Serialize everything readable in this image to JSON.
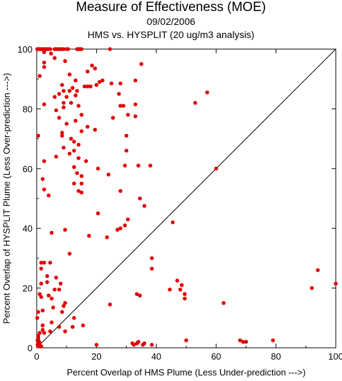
{
  "chart_data": {
    "type": "scatter",
    "title": "Measure of Effectiveness (MOE)",
    "subtitle": "09/02/2006",
    "subtitle2": "HMS vs. HYSPLIT  (20 ug/m3 analysis)",
    "xlabel": "Percent Overlap of HMS Plume (Less Under-prediction --->)",
    "ylabel": "Percent Overlap of HYSPLIT Plume (Less Over-prediction --->)",
    "xlim": [
      0,
      100
    ],
    "ylim": [
      0,
      100
    ],
    "x_ticks": [
      "0",
      "20",
      "40",
      "60",
      "80",
      "100"
    ],
    "y_ticks": [
      "0",
      "20",
      "40",
      "60",
      "80",
      "100"
    ],
    "reference_line": "1:1 diagonal",
    "point_color": "#e00000",
    "line_color": "#000000",
    "points": [
      [
        0.2,
        100
      ],
      [
        0.5,
        100
      ],
      [
        0.8,
        100
      ],
      [
        1.2,
        100
      ],
      [
        1.5,
        100
      ],
      [
        1.8,
        100
      ],
      [
        2.2,
        100
      ],
      [
        2.6,
        100
      ],
      [
        3.0,
        100
      ],
      [
        3.5,
        100
      ],
      [
        4.0,
        100
      ],
      [
        4.5,
        100
      ],
      [
        6,
        100
      ],
      [
        6.5,
        100
      ],
      [
        7,
        100
      ],
      [
        7.5,
        100
      ],
      [
        8,
        100
      ],
      [
        8.5,
        100
      ],
      [
        9,
        100
      ],
      [
        10,
        100
      ],
      [
        10.5,
        100
      ],
      [
        13.5,
        100
      ],
      [
        14,
        100
      ],
      [
        14.5,
        100
      ],
      [
        15,
        100
      ],
      [
        24.5,
        100
      ],
      [
        2.5,
        99
      ],
      [
        4.8,
        98.5
      ],
      [
        6,
        97
      ],
      [
        9.5,
        96
      ],
      [
        2.5,
        95.5
      ],
      [
        2.5,
        94
      ],
      [
        18.5,
        94.5
      ],
      [
        19.5,
        93.5
      ],
      [
        35,
        95
      ],
      [
        17,
        92.5
      ],
      [
        11,
        91.5
      ],
      [
        1,
        91
      ],
      [
        13,
        89.5
      ],
      [
        21,
        89
      ],
      [
        22,
        89.5
      ],
      [
        25,
        88.5
      ],
      [
        28,
        88.5
      ],
      [
        20,
        88
      ],
      [
        18,
        87.5
      ],
      [
        17,
        87.5
      ],
      [
        16,
        87.5
      ],
      [
        8.5,
        88
      ],
      [
        9,
        86
      ],
      [
        11,
        86
      ],
      [
        12,
        87
      ],
      [
        13.5,
        86
      ],
      [
        7.5,
        85
      ],
      [
        13,
        84.5
      ],
      [
        33,
        89.5
      ],
      [
        57,
        85.5
      ],
      [
        27.5,
        85
      ],
      [
        10,
        84
      ],
      [
        6,
        84
      ],
      [
        9,
        82
      ],
      [
        11.5,
        82
      ],
      [
        14,
        81
      ],
      [
        2.5,
        81.5
      ],
      [
        28,
        81
      ],
      [
        29,
        81
      ],
      [
        33,
        81.5
      ],
      [
        53,
        82
      ],
      [
        9,
        80.5
      ],
      [
        6.5,
        79.5
      ],
      [
        15,
        78
      ],
      [
        30.5,
        78
      ],
      [
        33,
        77.5
      ],
      [
        7.5,
        77
      ],
      [
        25.5,
        77
      ],
      [
        13,
        76
      ],
      [
        10,
        75
      ],
      [
        17,
        74
      ],
      [
        19.5,
        73
      ],
      [
        15,
        72.5
      ],
      [
        8.5,
        72
      ],
      [
        8.5,
        71
      ],
      [
        0.5,
        71
      ],
      [
        30,
        71
      ],
      [
        11.5,
        70
      ],
      [
        12.5,
        69
      ],
      [
        14,
        68
      ],
      [
        9,
        67
      ],
      [
        12.5,
        66
      ],
      [
        30,
        66
      ],
      [
        11,
        65
      ],
      [
        6.5,
        64
      ],
      [
        14,
        63.5
      ],
      [
        2.5,
        62.5
      ],
      [
        16.5,
        62.5
      ],
      [
        29.5,
        61
      ],
      [
        34,
        61
      ],
      [
        38,
        61
      ],
      [
        12.5,
        60.5
      ],
      [
        20.5,
        60
      ],
      [
        60,
        60
      ],
      [
        13.5,
        58.5
      ],
      [
        24,
        58
      ],
      [
        15,
        57.5
      ],
      [
        2,
        56.5
      ],
      [
        12.5,
        55
      ],
      [
        15,
        55
      ],
      [
        2.5,
        53
      ],
      [
        14,
        52.5
      ],
      [
        15,
        52
      ],
      [
        28,
        52.5
      ],
      [
        4,
        51
      ],
      [
        34.5,
        50
      ],
      [
        36,
        47.5
      ],
      [
        20.5,
        45
      ],
      [
        30.5,
        43
      ],
      [
        45.5,
        42
      ],
      [
        29.5,
        41
      ],
      [
        28,
        40
      ],
      [
        27,
        39.5
      ],
      [
        9.5,
        39.5
      ],
      [
        5,
        38.5
      ],
      [
        17.5,
        37.5
      ],
      [
        23.5,
        37
      ],
      [
        11,
        31.5
      ],
      [
        38.5,
        30
      ],
      [
        1.5,
        28.5
      ],
      [
        2.5,
        28.5
      ],
      [
        4.5,
        28.5
      ],
      [
        1.5,
        26.5
      ],
      [
        38.5,
        26.5
      ],
      [
        94,
        26
      ],
      [
        3.5,
        24
      ],
      [
        6.5,
        23.5
      ],
      [
        3.5,
        22
      ],
      [
        47,
        22.5
      ],
      [
        8,
        21.5
      ],
      [
        1.5,
        21.5
      ],
      [
        48.5,
        21
      ],
      [
        100,
        21.5
      ],
      [
        92,
        20
      ],
      [
        6,
        19.5
      ],
      [
        7.5,
        19.5
      ],
      [
        44.5,
        19.5
      ],
      [
        48,
        19.5
      ],
      [
        33.5,
        18
      ],
      [
        1,
        18
      ],
      [
        34.5,
        17.5
      ],
      [
        49.5,
        18
      ],
      [
        4,
        17.5
      ],
      [
        5,
        16.5
      ],
      [
        49.5,
        16.5
      ],
      [
        1.5,
        17
      ],
      [
        24.5,
        14.5
      ],
      [
        9.5,
        15
      ],
      [
        9,
        14
      ],
      [
        62.5,
        15
      ],
      [
        5.5,
        13.5
      ],
      [
        2,
        12.5
      ],
      [
        0.5,
        12
      ],
      [
        8.5,
        12
      ],
      [
        0.2,
        10
      ],
      [
        12.5,
        10
      ],
      [
        5,
        8.5
      ],
      [
        2,
        7.5
      ],
      [
        15.5,
        7.5
      ],
      [
        12,
        7
      ],
      [
        7.5,
        7
      ],
      [
        2,
        6
      ],
      [
        4.5,
        5.5
      ],
      [
        9.5,
        5.5
      ],
      [
        1,
        5
      ],
      [
        2.5,
        5
      ],
      [
        0.5,
        4
      ],
      [
        0.5,
        3.5
      ],
      [
        0.5,
        2.8
      ],
      [
        0.3,
        2.5
      ],
      [
        0.8,
        2
      ],
      [
        1,
        1.5
      ],
      [
        0.3,
        1
      ],
      [
        0.5,
        0.5
      ],
      [
        1.5,
        0.5
      ],
      [
        50,
        2.5
      ],
      [
        32,
        1.5
      ],
      [
        32.5,
        1
      ],
      [
        33.5,
        1.5
      ],
      [
        34,
        2
      ],
      [
        35.5,
        1
      ],
      [
        36,
        1.5
      ],
      [
        38.5,
        1
      ],
      [
        68,
        2.5
      ],
      [
        69,
        2
      ],
      [
        70,
        2
      ],
      [
        79,
        2.5
      ],
      [
        20,
        1
      ]
    ]
  }
}
